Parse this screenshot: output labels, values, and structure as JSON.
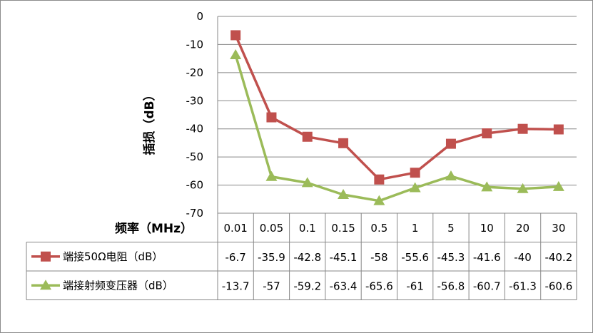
{
  "chart_data": {
    "type": "line",
    "ylabel": "插损（dB）",
    "xlabel": "频率（MHz）",
    "ylim": [
      -70,
      0
    ],
    "yticks": [
      0,
      -10,
      -20,
      -30,
      -40,
      -50,
      -60,
      -70
    ],
    "grid": true,
    "categories": [
      "0.01",
      "0.05",
      "0.1",
      "0.15",
      "0.5",
      "1",
      "5",
      "10",
      "20",
      "30"
    ],
    "series": [
      {
        "name": "端接50Ω电阻（dB）",
        "color": "#c0504d",
        "marker": "square",
        "values": [
          -6.7,
          -35.9,
          -42.8,
          -45.1,
          -58,
          -55.6,
          -45.3,
          -41.6,
          -40,
          -40.2
        ],
        "labels": [
          "-6.7",
          "-35.9",
          "-42.8",
          "-45.1",
          "-58",
          "-55.6",
          "-45.3",
          "-41.6",
          "-40",
          "-40.2"
        ]
      },
      {
        "name": "端接射频变压器（dB）",
        "color": "#9bbb59",
        "marker": "triangle",
        "values": [
          -13.7,
          -57,
          -59.2,
          -63.4,
          -65.6,
          -61,
          -56.8,
          -60.7,
          -61.3,
          -60.6
        ],
        "labels": [
          "-13.7",
          "-57",
          "-59.2",
          "-63.4",
          "-65.6",
          "-61",
          "-56.8",
          "-60.7",
          "-61.3",
          "-60.6"
        ]
      }
    ]
  }
}
